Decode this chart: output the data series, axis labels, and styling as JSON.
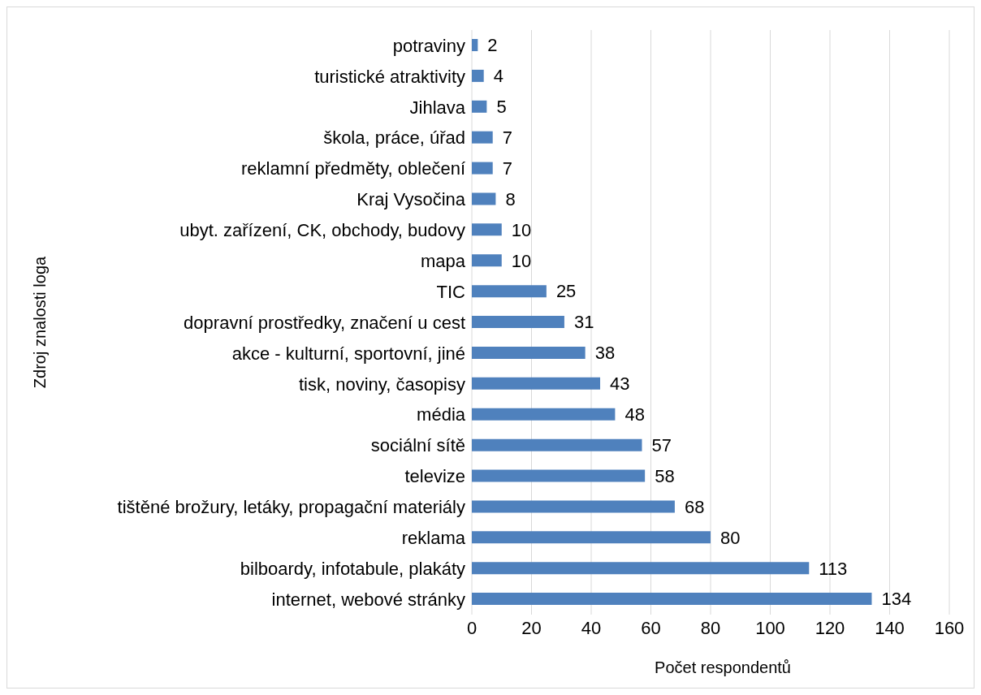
{
  "chart_data": {
    "type": "bar",
    "orientation": "horizontal",
    "xlabel": "Počet respondentů",
    "ylabel": "Zdroj znalosti loga",
    "categories": [
      "potraviny",
      "turistické atraktivity",
      "Jihlava",
      "škola, práce, úřad",
      "reklamní předměty, oblečení",
      "Kraj Vysočina",
      "ubyt. zařízení, CK, obchody, budovy",
      "mapa",
      "TIC",
      "dopravní prostředky, značení u cest",
      "akce - kulturní, sportovní, jiné",
      "tisk, noviny, časopisy",
      "média",
      "sociální sítě",
      "televize",
      "tištěné brožury, letáky, propagační materiály",
      "reklama",
      "bilboardy, infotabule, plakáty",
      "internet, webové stránky"
    ],
    "values": [
      2,
      4,
      5,
      7,
      7,
      8,
      10,
      10,
      25,
      31,
      38,
      43,
      48,
      57,
      58,
      68,
      80,
      113,
      134
    ],
    "color": "#4f81bd",
    "xlim": [
      0,
      160
    ],
    "xticks": [
      0,
      20,
      40,
      60,
      80,
      100,
      120,
      140,
      160
    ],
    "grid": "x",
    "data_labels": true,
    "legend": false
  }
}
